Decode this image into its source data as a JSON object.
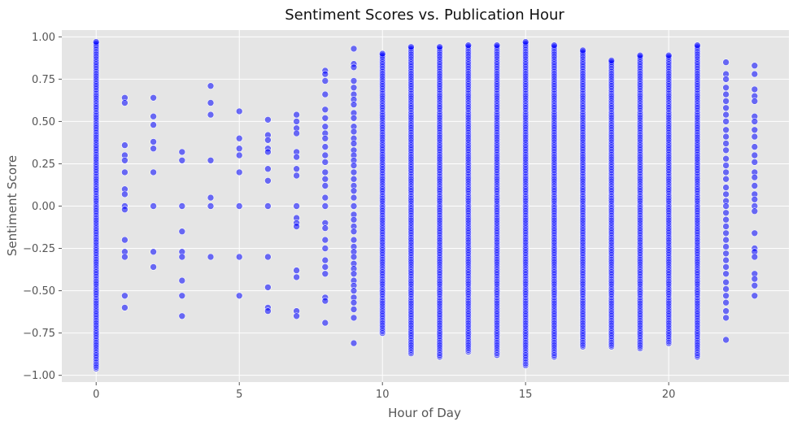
{
  "chart_data": {
    "type": "scatter",
    "title": "Sentiment Scores vs. Publication Hour",
    "xlabel": "Hour of Day",
    "ylabel": "Sentiment Score",
    "xlim": [
      -1.2,
      24.2
    ],
    "ylim": [
      -1.04,
      1.04
    ],
    "x_ticks": [
      0,
      5,
      10,
      15,
      20
    ],
    "y_ticks": [
      -1.0,
      -0.75,
      -0.5,
      -0.25,
      0.0,
      0.25,
      0.5,
      0.75,
      1.0
    ],
    "y_tick_labels": [
      "−1.00",
      "−0.75",
      "−0.50",
      "−0.25",
      "0.00",
      "0.25",
      "0.50",
      "0.75",
      "1.00"
    ],
    "grid": true,
    "point_color": "#0000ff",
    "point_edge_color": "#ffffff",
    "point_alpha": 0.55,
    "style": "ggplot",
    "dense_hours": [
      {
        "x": 0,
        "min": -0.96,
        "max": 0.97
      },
      {
        "x": 10,
        "min": -0.75,
        "max": 0.9
      },
      {
        "x": 11,
        "min": -0.87,
        "max": 0.94
      },
      {
        "x": 12,
        "min": -0.89,
        "max": 0.94
      },
      {
        "x": 13,
        "min": -0.86,
        "max": 0.95
      },
      {
        "x": 14,
        "min": -0.88,
        "max": 0.95
      },
      {
        "x": 15,
        "min": -0.94,
        "max": 0.97
      },
      {
        "x": 16,
        "min": -0.89,
        "max": 0.95
      },
      {
        "x": 17,
        "min": -0.83,
        "max": 0.92
      },
      {
        "x": 18,
        "min": -0.83,
        "max": 0.86
      },
      {
        "x": 19,
        "min": -0.84,
        "max": 0.89
      },
      {
        "x": 20,
        "min": -0.81,
        "max": 0.89
      },
      {
        "x": 21,
        "min": -0.89,
        "max": 0.95
      }
    ],
    "sparse_points": [
      {
        "x": 1,
        "y": [
          0.64,
          0.61,
          0.36,
          0.3,
          0.27,
          0.2,
          0.1,
          0.07,
          0.0,
          -0.02,
          -0.2,
          -0.27,
          -0.3,
          -0.53,
          -0.6
        ]
      },
      {
        "x": 2,
        "y": [
          0.64,
          0.53,
          0.48,
          0.38,
          0.34,
          0.2,
          0.0,
          -0.27,
          -0.36
        ]
      },
      {
        "x": 3,
        "y": [
          0.32,
          0.27,
          0.0,
          -0.15,
          -0.27,
          -0.3,
          -0.44,
          -0.53,
          -0.65
        ]
      },
      {
        "x": 4,
        "y": [
          0.71,
          0.61,
          0.54,
          0.27,
          0.05,
          0.0,
          -0.3
        ]
      },
      {
        "x": 5,
        "y": [
          0.56,
          0.4,
          0.34,
          0.3,
          0.2,
          0.0,
          -0.3,
          -0.53
        ]
      },
      {
        "x": 6,
        "y": [
          0.51,
          0.42,
          0.39,
          0.34,
          0.32,
          0.22,
          0.15,
          0.0,
          -0.3,
          -0.48,
          -0.6,
          -0.62
        ]
      },
      {
        "x": 7,
        "y": [
          0.54,
          0.5,
          0.46,
          0.43,
          0.32,
          0.29,
          0.22,
          0.18,
          0.0,
          -0.07,
          -0.1,
          -0.12,
          -0.38,
          -0.42,
          -0.62,
          -0.65
        ]
      },
      {
        "x": 8,
        "y": [
          0.8,
          0.78,
          0.74,
          0.66,
          0.57,
          0.52,
          0.47,
          0.43,
          0.4,
          0.35,
          0.3,
          0.26,
          0.2,
          0.16,
          0.12,
          0.05,
          0.0,
          -0.1,
          -0.13,
          -0.2,
          -0.25,
          -0.32,
          -0.36,
          -0.4,
          -0.54,
          -0.56,
          -0.69
        ]
      },
      {
        "x": 9,
        "y": [
          0.93,
          0.84,
          0.82,
          0.74,
          0.7,
          0.66,
          0.63,
          0.6,
          0.55,
          0.52,
          0.47,
          0.44,
          0.4,
          0.37,
          0.33,
          0.3,
          0.27,
          0.24,
          0.2,
          0.16,
          0.12,
          0.09,
          0.05,
          0.0,
          -0.05,
          -0.08,
          -0.12,
          -0.15,
          -0.2,
          -0.24,
          -0.27,
          -0.3,
          -0.34,
          -0.37,
          -0.4,
          -0.44,
          -0.47,
          -0.5,
          -0.54,
          -0.57,
          -0.61,
          -0.66,
          -0.81
        ]
      },
      {
        "x": 22,
        "y": [
          0.85,
          0.78,
          0.75,
          0.7,
          0.66,
          0.62,
          0.58,
          0.54,
          0.5,
          0.45,
          0.41,
          0.37,
          0.33,
          0.28,
          0.24,
          0.2,
          0.16,
          0.11,
          0.07,
          0.03,
          0.0,
          -0.04,
          -0.08,
          -0.12,
          -0.16,
          -0.2,
          -0.24,
          -0.28,
          -0.32,
          -0.36,
          -0.4,
          -0.45,
          -0.49,
          -0.53,
          -0.57,
          -0.62,
          -0.66,
          -0.79
        ]
      },
      {
        "x": 23,
        "y": [
          0.83,
          0.78,
          0.69,
          0.65,
          0.62,
          0.53,
          0.5,
          0.45,
          0.41,
          0.35,
          0.3,
          0.26,
          0.2,
          0.17,
          0.12,
          0.07,
          0.04,
          0.0,
          -0.03,
          -0.16,
          -0.25,
          -0.27,
          -0.3,
          -0.4,
          -0.43,
          -0.47,
          -0.53
        ]
      }
    ]
  }
}
